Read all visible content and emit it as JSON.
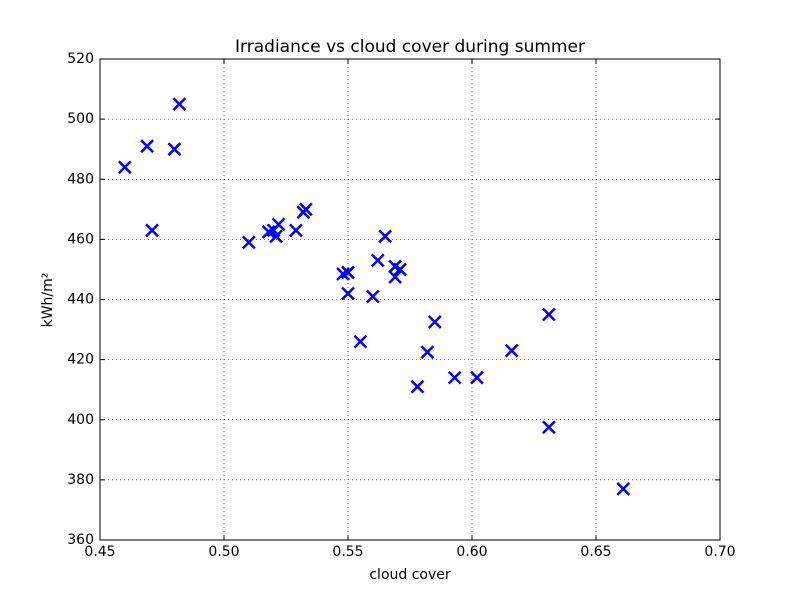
{
  "chart_data": {
    "type": "scatter",
    "title": "Irradiance vs cloud cover during summer",
    "x_label": "cloud cover",
    "y_label": "kWh/m²",
    "x": [
      0.46,
      0.469,
      0.471,
      0.48,
      0.482,
      0.51,
      0.518,
      0.52,
      0.522,
      0.521,
      0.529,
      0.532,
      0.533,
      0.548,
      0.55,
      0.55,
      0.555,
      0.56,
      0.562,
      0.565,
      0.569,
      0.569,
      0.571,
      0.578,
      0.582,
      0.585,
      0.593,
      0.602,
      0.616,
      0.631,
      0.631,
      0.661
    ],
    "values": [
      484,
      491,
      463,
      490,
      505,
      459,
      462.5,
      463,
      465,
      461,
      463,
      469,
      470,
      448.5,
      449,
      442,
      426,
      441,
      453,
      461,
      451,
      447.5,
      450,
      411,
      422.5,
      432.5,
      414,
      414,
      423,
      435,
      397.5,
      377
    ],
    "color": "#0000ff",
    "xlim": [
      0.45,
      0.7
    ],
    "xticks": [
      0.45,
      {
        "value": 0.5,
        "label": "0.50"
      },
      0.55,
      {
        "value": 0.6,
        "label": "0.60"
      },
      0.65,
      {
        "value": 0.7,
        "label": "0.70"
      }
    ],
    "ylim": [
      360,
      520
    ],
    "yticks": [
      360,
      380,
      400,
      420,
      440,
      460,
      480,
      500,
      520
    ],
    "grid": true
  }
}
